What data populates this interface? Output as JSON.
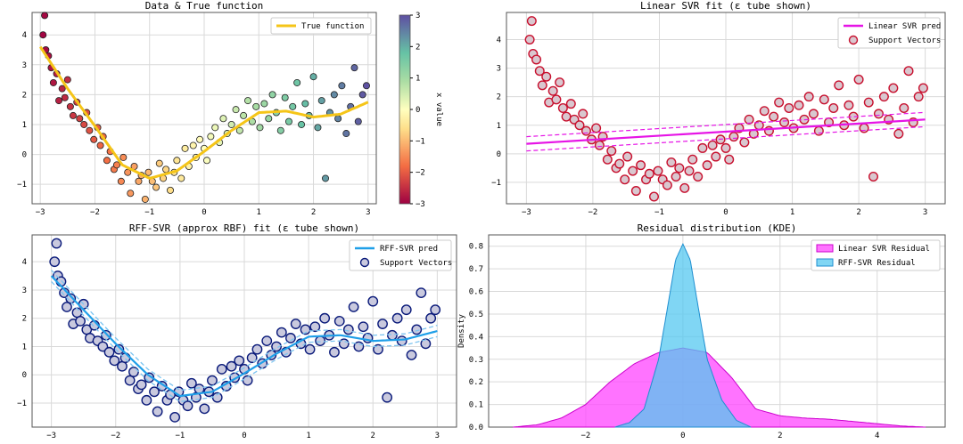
{
  "chart_data": [
    {
      "type": "scatter",
      "title": "Data & True function",
      "xlim": [
        -3.15,
        3.15
      ],
      "ylim": [
        -1.65,
        4.75
      ],
      "xticks": [
        -3,
        -2,
        -1,
        0,
        1,
        2,
        3
      ],
      "yticks": [
        -1,
        0,
        1,
        2,
        3,
        4
      ],
      "legend": [
        "True function"
      ],
      "colorbar": {
        "label": "x value",
        "ticks": [
          -3,
          -2,
          -1,
          0,
          1,
          2,
          3
        ],
        "range": [
          -3,
          3
        ]
      },
      "series": [
        {
          "name": "True function",
          "kind": "line",
          "color": "#f5c518",
          "x": [
            -3,
            -2.5,
            -2,
            -1.5,
            -1,
            -0.5,
            0,
            0.5,
            1,
            1.5,
            2,
            2.5,
            3
          ],
          "y": [
            3.6,
            2.2,
            0.95,
            -0.35,
            -0.8,
            -0.55,
            0.1,
            0.8,
            1.4,
            1.45,
            1.25,
            1.35,
            1.75
          ]
        },
        {
          "name": "Data",
          "kind": "scatter",
          "x": [
            -2.95,
            -2.92,
            -2.9,
            -2.85,
            -2.8,
            -2.76,
            -2.7,
            -2.66,
            -2.6,
            -2.55,
            -2.5,
            -2.45,
            -2.4,
            -2.33,
            -2.28,
            -2.2,
            -2.15,
            -2.1,
            -2.02,
            -1.95,
            -1.9,
            -1.85,
            -1.78,
            -1.72,
            -1.65,
            -1.6,
            -1.52,
            -1.48,
            -1.4,
            -1.35,
            -1.28,
            -1.2,
            -1.15,
            -1.08,
            -1.02,
            -0.95,
            -0.88,
            -0.82,
            -0.75,
            -0.7,
            -0.62,
            -0.55,
            -0.5,
            -0.42,
            -0.35,
            -0.28,
            -0.2,
            -0.15,
            -0.08,
            0.0,
            0.05,
            0.12,
            0.2,
            0.28,
            0.35,
            0.42,
            0.5,
            0.58,
            0.65,
            0.72,
            0.8,
            0.88,
            0.95,
            1.02,
            1.1,
            1.18,
            1.25,
            1.32,
            1.4,
            1.48,
            1.55,
            1.62,
            1.7,
            1.78,
            1.85,
            1.92,
            2.0,
            2.08,
            2.15,
            2.22,
            2.3,
            2.38,
            2.45,
            2.52,
            2.6,
            2.68,
            2.75,
            2.82,
            2.9,
            2.97
          ],
          "y": [
            4.0,
            4.65,
            3.5,
            3.3,
            2.9,
            2.4,
            2.7,
            1.8,
            2.2,
            1.9,
            2.5,
            1.6,
            1.3,
            1.75,
            1.2,
            1.0,
            1.4,
            0.8,
            0.5,
            0.9,
            0.3,
            0.6,
            -0.2,
            0.1,
            -0.5,
            -0.35,
            -0.9,
            -0.1,
            -0.6,
            -1.3,
            -0.4,
            -0.9,
            -0.7,
            -1.5,
            -0.6,
            -0.9,
            -1.1,
            -0.3,
            -0.8,
            -0.5,
            -1.2,
            -0.6,
            -0.2,
            -0.8,
            0.2,
            -0.4,
            0.3,
            -0.1,
            0.5,
            0.2,
            -0.2,
            0.6,
            0.9,
            0.4,
            1.2,
            0.7,
            1.0,
            1.5,
            0.8,
            1.3,
            1.8,
            1.1,
            1.6,
            0.9,
            1.7,
            1.2,
            2.0,
            1.4,
            0.8,
            1.9,
            1.1,
            1.6,
            2.4,
            1.0,
            1.7,
            1.3,
            2.6,
            0.9,
            1.8,
            -0.8,
            1.4,
            2.0,
            1.2,
            2.3,
            0.7,
            1.6,
            2.9,
            1.1,
            2.0,
            2.3
          ]
        }
      ]
    },
    {
      "type": "scatter",
      "title": "Linear SVR fit (ε tube shown)",
      "xlim": [
        -3.3,
        3.3
      ],
      "ylim": [
        -1.75,
        4.95
      ],
      "xticks": [
        -3,
        -2,
        -1,
        0,
        1,
        2,
        3
      ],
      "yticks": [
        -1,
        0,
        1,
        2,
        3,
        4
      ],
      "legend": [
        "Linear SVR pred",
        "Support Vectors"
      ],
      "series": [
        {
          "name": "Linear SVR pred",
          "kind": "line",
          "color": "#e614e6",
          "x": [
            -3,
            3
          ],
          "y": [
            0.35,
            1.2
          ]
        },
        {
          "name": "Support Vectors",
          "kind": "scatter",
          "color": "#c8102e"
        }
      ],
      "epsilon": 0.25
    },
    {
      "type": "scatter",
      "title": "RFF-SVR (approx RBF) fit (ε tube shown)",
      "xlim": [
        -3.3,
        3.3
      ],
      "ylim": [
        -1.85,
        4.95
      ],
      "xticks": [
        -3,
        -2,
        -1,
        0,
        1,
        2,
        3
      ],
      "yticks": [
        -1,
        0,
        1,
        2,
        3,
        4
      ],
      "legend": [
        "RFF-SVR pred",
        "Support Vectors"
      ],
      "series": [
        {
          "name": "RFF-SVR pred",
          "kind": "line",
          "color": "#1f9fe8",
          "x": [
            -3,
            -2.5,
            -2,
            -1.5,
            -1,
            -0.5,
            0,
            0.5,
            1,
            1.5,
            2,
            2.5,
            3
          ],
          "y": [
            3.5,
            2.3,
            1.1,
            0.0,
            -0.75,
            -0.6,
            0.05,
            0.75,
            1.35,
            1.4,
            1.2,
            1.25,
            1.55
          ]
        },
        {
          "name": "Support Vectors",
          "kind": "scatter",
          "color": "#0a1a7a"
        }
      ],
      "epsilon": 0.2
    },
    {
      "type": "area",
      "title": "Residual distribution (KDE)",
      "xlim": [
        -4.0,
        5.4
      ],
      "ylim": [
        0,
        0.85
      ],
      "xticks": [
        -2,
        0,
        2,
        4
      ],
      "yticks": [
        0.0,
        0.1,
        0.2,
        0.3,
        0.4,
        0.5,
        0.6,
        0.7,
        0.8
      ],
      "xlabel": "",
      "ylabel": "Density",
      "legend": [
        "Linear SVR Residual",
        "RFF-SVR Residual"
      ],
      "series": [
        {
          "name": "Linear SVR Residual",
          "color": "#ff44ff",
          "x": [
            -3.5,
            -3,
            -2.5,
            -2,
            -1.5,
            -1,
            -0.5,
            0,
            0.5,
            1,
            1.5,
            2,
            2.5,
            3,
            3.5,
            4,
            4.5,
            5
          ],
          "y": [
            0.0,
            0.01,
            0.04,
            0.1,
            0.2,
            0.28,
            0.33,
            0.35,
            0.33,
            0.22,
            0.08,
            0.05,
            0.04,
            0.035,
            0.025,
            0.015,
            0.005,
            0.0
          ]
        },
        {
          "name": "RFF-SVR Residual",
          "color": "#55c8f0",
          "x": [
            -1.4,
            -1.1,
            -0.8,
            -0.5,
            -0.3,
            -0.15,
            0,
            0.15,
            0.3,
            0.5,
            0.8,
            1.1,
            1.4
          ],
          "y": [
            0.0,
            0.02,
            0.08,
            0.3,
            0.55,
            0.74,
            0.81,
            0.74,
            0.55,
            0.3,
            0.12,
            0.03,
            0.0
          ]
        }
      ]
    }
  ]
}
